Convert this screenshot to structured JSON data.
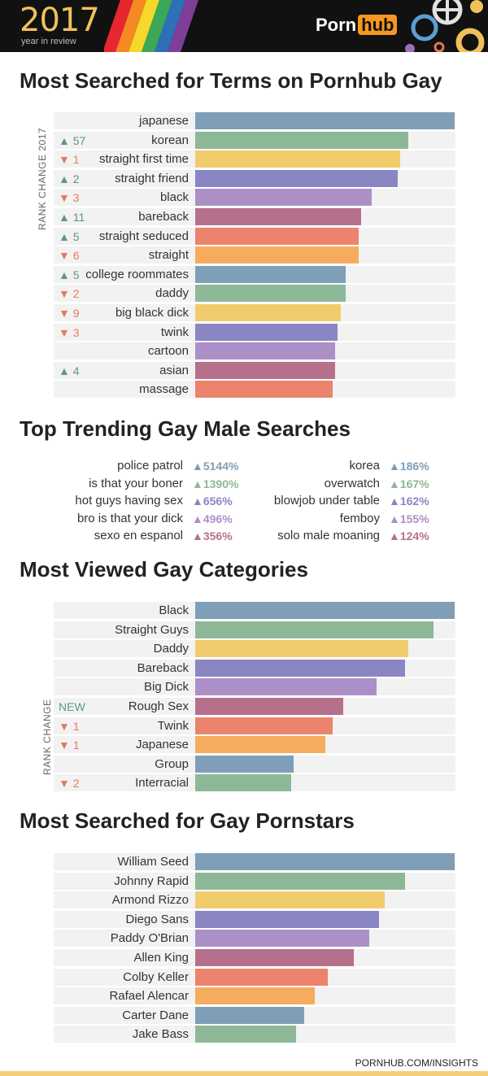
{
  "header": {
    "year": "2017",
    "subtitle": "year in review",
    "brand_left": "Porn",
    "brand_right": "hub"
  },
  "footer": {
    "url": "PORNHUB.COM/INSIGHTS"
  },
  "chart_data": [
    {
      "type": "bar",
      "orientation": "horizontal",
      "title": "Most Searched for Terms on Pornhub Gay",
      "rank_axis_label": "RANK CHANGE 2017",
      "categories": [
        "japanese",
        "korean",
        "straight first time",
        "straight friend",
        "black",
        "bareback",
        "straight seduced",
        "straight",
        "college roommates",
        "daddy",
        "big black dick",
        "twink",
        "cartoon",
        "asian",
        "massage"
      ],
      "values": [
        100,
        82,
        79,
        78,
        68,
        64,
        63,
        63,
        58,
        58,
        56,
        55,
        54,
        54,
        53
      ],
      "rank_change": [
        "",
        "▲ 57",
        "▼ 1",
        "▲ 2",
        "▼ 3",
        "▲ 11",
        "▲ 5",
        "▼ 6",
        "▲ 5",
        "▼ 2",
        "▼ 9",
        "▼ 3",
        "",
        "▲ 4",
        ""
      ],
      "colors": [
        "#7f9fb9",
        "#8db898",
        "#f0cc6c",
        "#8a86c4",
        "#ac8fc6",
        "#b6708c",
        "#ec836d",
        "#f6ac5e",
        "#7f9fb9",
        "#8db898",
        "#f0cc6c",
        "#8a86c4",
        "#ac8fc6",
        "#b6708c",
        "#ec836d"
      ],
      "xlim": [
        0,
        100
      ]
    },
    {
      "type": "table",
      "title": "Top Trending Gay Male Searches",
      "left": [
        {
          "term": "police patrol",
          "pct": "▲5144%",
          "color": "#7f9fb9"
        },
        {
          "term": "is that your boner",
          "pct": "▲1390%",
          "color": "#8db898"
        },
        {
          "term": "hot guys having sex",
          "pct": "▲656%",
          "color": "#8a86c4"
        },
        {
          "term": "bro is that your dick",
          "pct": "▲496%",
          "color": "#ac8fc6"
        },
        {
          "term": "sexo en espanol",
          "pct": "▲356%",
          "color": "#b6708c"
        }
      ],
      "right": [
        {
          "term": "korea",
          "pct": "▲186%",
          "color": "#7f9fb9"
        },
        {
          "term": "overwatch",
          "pct": "▲167%",
          "color": "#8db898"
        },
        {
          "term": "blowjob under table",
          "pct": "▲162%",
          "color": "#8a86c4"
        },
        {
          "term": "femboy",
          "pct": "▲155%",
          "color": "#ac8fc6"
        },
        {
          "term": "solo male moaning",
          "pct": "▲124%",
          "color": "#b6708c"
        }
      ]
    },
    {
      "type": "bar",
      "orientation": "horizontal",
      "title": "Most Viewed Gay Categories",
      "rank_axis_label": "RANK CHANGE",
      "categories": [
        "Black",
        "Straight Guys",
        "Daddy",
        "Bareback",
        "Big Dick",
        "Rough Sex",
        "Twink",
        "Japanese",
        "Group",
        "Interracial"
      ],
      "values": [
        100,
        92,
        82,
        81,
        70,
        57,
        53,
        50,
        38,
        37
      ],
      "rank_change": [
        "",
        "",
        "",
        "",
        "",
        "NEW",
        "▼ 1",
        "▼ 1",
        "",
        "▼ 2"
      ],
      "colors": [
        "#7f9fb9",
        "#8db898",
        "#f0cc6c",
        "#8a86c4",
        "#ac8fc6",
        "#b6708c",
        "#ec836d",
        "#f6ac5e",
        "#7f9fb9",
        "#8db898"
      ],
      "xlim": [
        0,
        100
      ]
    },
    {
      "type": "bar",
      "orientation": "horizontal",
      "title": "Most Searched for Gay Pornstars",
      "categories": [
        "William Seed",
        "Johnny Rapid",
        "Armond Rizzo",
        "Diego Sans",
        "Paddy O'Brian",
        "Allen King",
        "Colby Keller",
        "Rafael Alencar",
        "Carter Dane",
        "Jake Bass"
      ],
      "values": [
        100,
        81,
        73,
        71,
        67,
        61,
        51,
        46,
        42,
        39
      ],
      "rank_change": [
        "",
        "",
        "",
        "",
        "",
        "",
        "",
        "",
        "",
        ""
      ],
      "colors": [
        "#7f9fb9",
        "#8db898",
        "#f0cc6c",
        "#8a86c4",
        "#ac8fc6",
        "#b6708c",
        "#ec836d",
        "#f6ac5e",
        "#7f9fb9",
        "#8db898"
      ],
      "xlim": [
        0,
        100
      ]
    }
  ]
}
